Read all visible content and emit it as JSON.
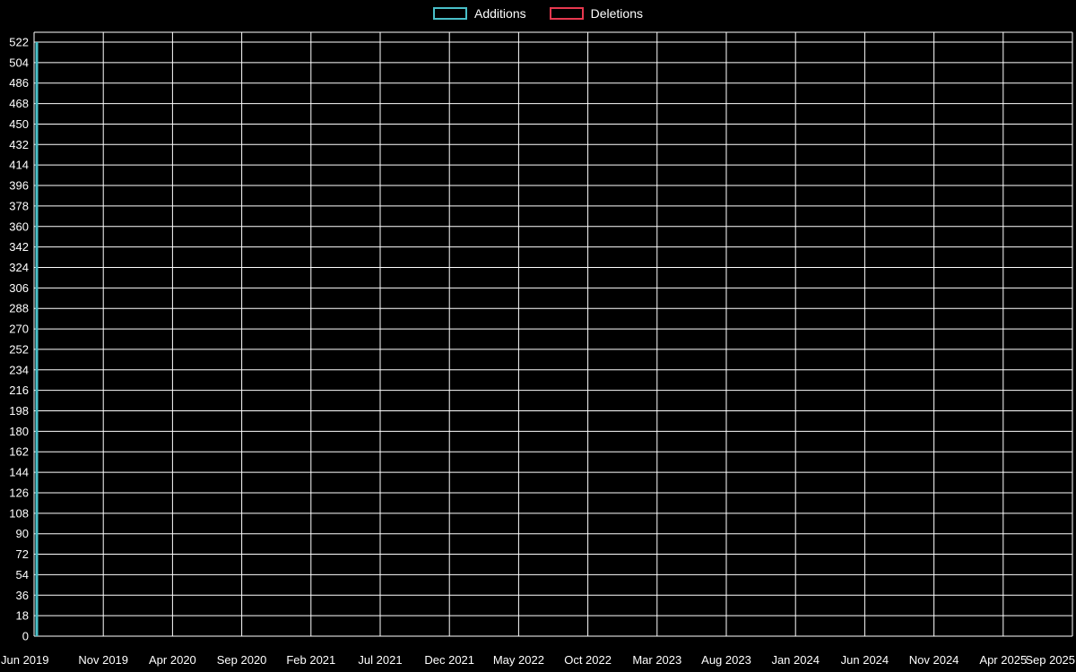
{
  "legend": {
    "items": [
      {
        "label": "Additions",
        "color": "#49c0c9"
      },
      {
        "label": "Deletions",
        "color": "#e8384f"
      }
    ]
  },
  "chart_data": {
    "type": "bar",
    "title": "",
    "xlabel": "",
    "ylabel": "",
    "background": "#000000",
    "grid": true,
    "grid_color": "#ffffff",
    "text_color": "#ffffff",
    "legend_position": "top-center",
    "ylim": [
      0,
      522
    ],
    "y_ticks": [
      0,
      18,
      36,
      54,
      72,
      90,
      108,
      126,
      144,
      162,
      180,
      198,
      216,
      234,
      252,
      270,
      288,
      306,
      324,
      342,
      360,
      378,
      396,
      414,
      432,
      450,
      468,
      486,
      504,
      522
    ],
    "x_ticks": [
      "Jun 2019",
      "Nov 2019",
      "Apr 2020",
      "Sep 2020",
      "Feb 2021",
      "Jul 2021",
      "Dec 2021",
      "May 2022",
      "Oct 2022",
      "Mar 2023",
      "Aug 2023",
      "Jan 2024",
      "Jun 2024",
      "Nov 2024",
      "Apr 2025",
      "Sep 2025"
    ],
    "series": [
      {
        "name": "Additions",
        "color": "#49c0c9",
        "points": [
          {
            "x": "Jun 2019",
            "y": 522
          }
        ]
      },
      {
        "name": "Deletions",
        "color": "#e8384f",
        "points": [
          {
            "x": "Jun 2019",
            "y": 0
          }
        ]
      }
    ]
  }
}
